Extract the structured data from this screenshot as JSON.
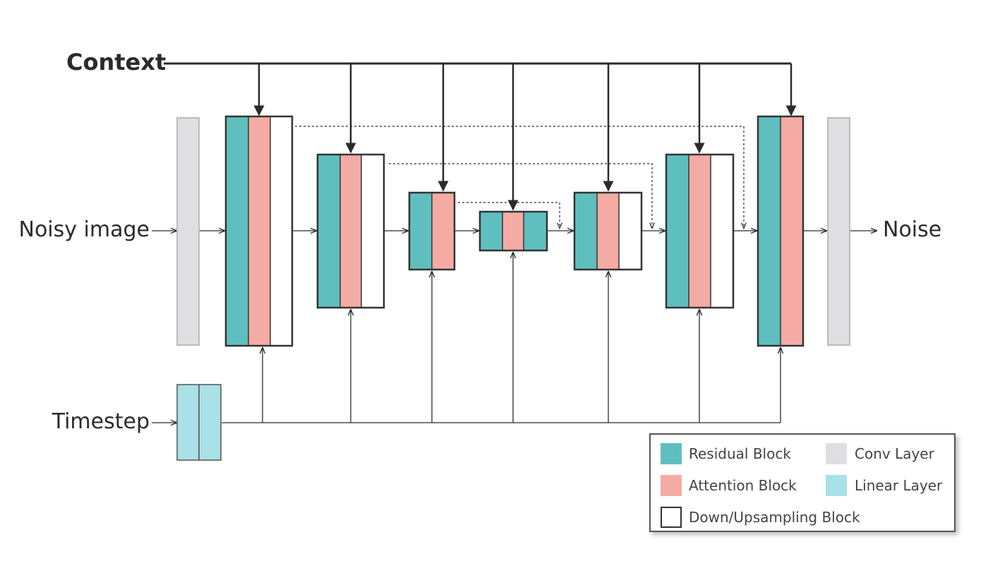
{
  "labels": {
    "context": "Context",
    "noisy_image": "Noisy image",
    "timestep": "Timestep",
    "noise": "Noise"
  },
  "legend": {
    "residual": "Residual Block",
    "attention": "Attention Block",
    "updown": "Down/Upsampling Block",
    "conv": "Conv Layer",
    "linear": "Linear Layer"
  },
  "colors": {
    "residual": "#5fbfbf",
    "attention": "#f4aba4",
    "updown": "#ffffff",
    "conv": "#dfdfe1",
    "linear": "#a9e1e6",
    "line": "#2b2b2b"
  }
}
